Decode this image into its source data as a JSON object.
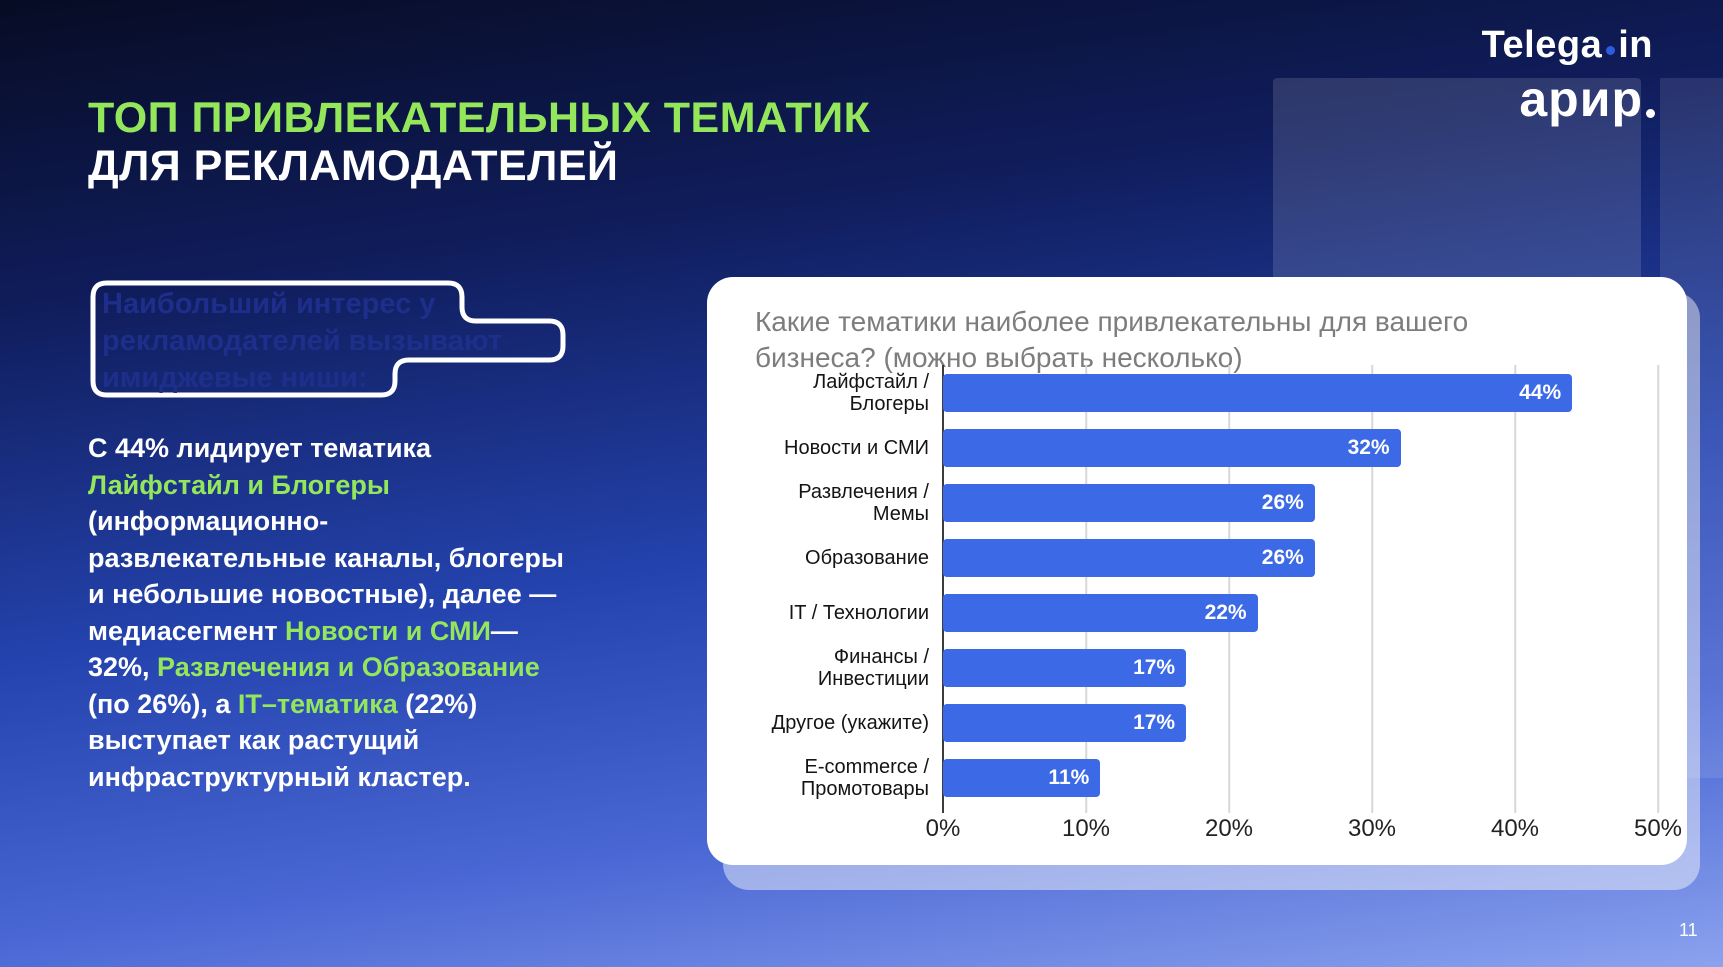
{
  "slide": {
    "page_number": "11"
  },
  "logos": {
    "telega_pre": "Telega",
    "telega_post": "in",
    "arir": "арир"
  },
  "title": {
    "line1": "ТОП ПРИВЛЕКАТЕЛЬНЫХ ТЕМАТИК",
    "line2": "ДЛЯ РЕКЛАМОДАТЕЛЕЙ"
  },
  "callout": {
    "line1": "Наибольший интерес у",
    "line2": "рекламодателей вызывают",
    "line3": "имиджевые ниши:"
  },
  "paragraph": {
    "lines": [
      [
        {
          "t": "С 44% лидирует тематика",
          "c": "white"
        }
      ],
      [
        {
          "t": "Лайфстайл и Блогеры",
          "c": "green"
        }
      ],
      [
        {
          "t": "(информационно-",
          "c": "white"
        }
      ],
      [
        {
          "t": "развлекательные каналы, блогеры",
          "c": "white"
        }
      ],
      [
        {
          "t": "и небольшие новостные), далее —",
          "c": "white"
        }
      ],
      [
        {
          "t": "медиасегмент ",
          "c": "white"
        },
        {
          "t": "Новости и СМИ",
          "c": "green"
        },
        {
          "t": "—",
          "c": "white"
        }
      ],
      [
        {
          "t": "32%, ",
          "c": "white"
        },
        {
          "t": "Развлечения и Образование",
          "c": "green"
        }
      ],
      [
        {
          "t": "(по 26%), а ",
          "c": "white"
        },
        {
          "t": "IT–тематика",
          "c": "green"
        },
        {
          "t": " (22%)",
          "c": "white"
        }
      ],
      [
        {
          "t": "выступает как растущий",
          "c": "white"
        }
      ],
      [
        {
          "t": "инфраструктурный кластер.",
          "c": "white"
        }
      ]
    ]
  },
  "chart_card": {
    "question_line1": "Какие тематики наиболее привлекательны для вашего",
    "question_line2": "бизнеса? (можно выбрать несколько)"
  },
  "chart_data": {
    "type": "bar",
    "orientation": "horizontal",
    "title": "Какие тематики наиболее привлекательны для вашего бизнеса? (можно выбрать несколько)",
    "categories": [
      "Лайфстайл / Блогеры",
      "Новости и СМИ",
      "Развлечения / Мемы",
      "Образование",
      "IT / Технологии",
      "Финансы / Инвестиции",
      "Другое (укажите)",
      "E-commerce / Промотовары"
    ],
    "category_lines": [
      [
        "Лайфстайл /",
        "Блогеры"
      ],
      [
        "Новости и СМИ"
      ],
      [
        "Развлечения /",
        "Мемы"
      ],
      [
        "Образование"
      ],
      [
        "IT / Технологии"
      ],
      [
        "Финансы /",
        "Инвестиции"
      ],
      [
        "Другое (укажите)"
      ],
      [
        "E-commerce /",
        "Промотовары"
      ]
    ],
    "values": [
      44,
      32,
      26,
      26,
      22,
      17,
      17,
      11
    ],
    "value_labels": [
      "44%",
      "32%",
      "26%",
      "26%",
      "22%",
      "17%",
      "17%",
      "11%"
    ],
    "xlim": [
      0,
      50
    ],
    "x_ticks": [
      "0%",
      "10%",
      "20%",
      "30%",
      "40%",
      "50%"
    ],
    "grid": true,
    "legend": false,
    "value_label_position": "inside-end"
  },
  "colors": {
    "accent_green": "#94E75B",
    "bar_blue": "#3C6AE6",
    "callout_navy": "#1D2F8A",
    "telega_dot_blue": "#2F5BE0"
  }
}
